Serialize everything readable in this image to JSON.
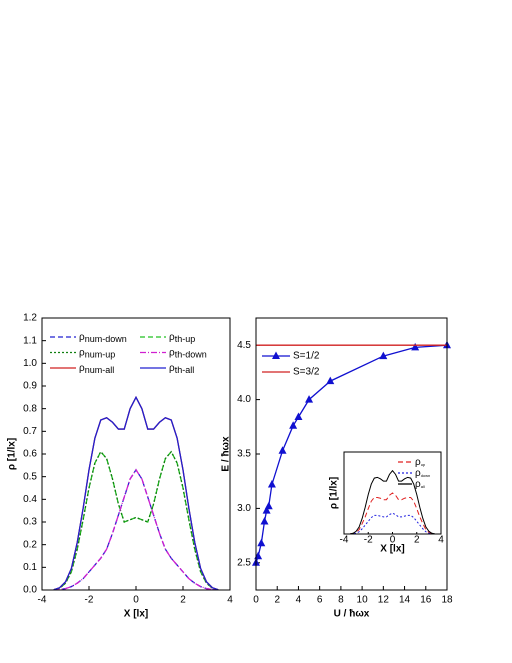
{
  "chart_data": [
    {
      "type": "line",
      "xlabel": "X [lx]",
      "ylabel": "ρ [1/lx]",
      "xlim": [
        -4,
        4
      ],
      "ylim": [
        0,
        1.2
      ],
      "xticks": [
        -4,
        -2,
        0,
        2,
        4
      ],
      "yticks": [
        {
          "value": 0,
          "label": "0.0"
        },
        0.1,
        0.2,
        0.3,
        0.4,
        0.5,
        0.6,
        0.7,
        0.8,
        0.9,
        {
          "value": 1,
          "label": "1.0"
        },
        1.1,
        1.2
      ],
      "legend": "top",
      "x": [
        -3.5,
        -3.25,
        -3,
        -2.75,
        -2.5,
        -2.25,
        -2,
        -1.75,
        -1.5,
        -1.25,
        -1,
        -0.75,
        -0.5,
        -0.25,
        0,
        0.25,
        0.5,
        0.75,
        1,
        1.25,
        1.5,
        1.75,
        2,
        2.25,
        2.5,
        2.75,
        3,
        3.25,
        3.5
      ],
      "series": [
        {
          "name": "ρnum-down",
          "color": "#2020d0",
          "style": "dashed",
          "values": [
            0,
            0.002,
            0.006,
            0.015,
            0.03,
            0.05,
            0.08,
            0.11,
            0.14,
            0.18,
            0.25,
            0.33,
            0.41,
            0.49,
            0.53,
            0.49,
            0.41,
            0.33,
            0.25,
            0.18,
            0.14,
            0.11,
            0.08,
            0.05,
            0.03,
            0.015,
            0.006,
            0.002,
            0
          ]
        },
        {
          "name": "ρth-up",
          "color": "#20c020",
          "style": "dashed",
          "values": [
            0.001,
            0.008,
            0.03,
            0.08,
            0.18,
            0.31,
            0.45,
            0.56,
            0.61,
            0.58,
            0.49,
            0.38,
            0.3,
            0.31,
            0.32,
            0.31,
            0.3,
            0.38,
            0.49,
            0.58,
            0.61,
            0.56,
            0.45,
            0.31,
            0.18,
            0.08,
            0.03,
            0.008,
            0.001
          ]
        },
        {
          "name": "ρnum-up",
          "color": "#108010",
          "style": "dotted",
          "values": [
            0.001,
            0.008,
            0.03,
            0.08,
            0.18,
            0.31,
            0.45,
            0.56,
            0.61,
            0.58,
            0.49,
            0.38,
            0.3,
            0.31,
            0.32,
            0.31,
            0.3,
            0.38,
            0.49,
            0.58,
            0.61,
            0.56,
            0.45,
            0.31,
            0.18,
            0.08,
            0.03,
            0.008,
            0.001
          ]
        },
        {
          "name": "ρth-down",
          "color": "#d020d0",
          "style": "dashdot",
          "values": [
            0,
            0.002,
            0.006,
            0.015,
            0.03,
            0.05,
            0.08,
            0.11,
            0.14,
            0.18,
            0.25,
            0.33,
            0.41,
            0.49,
            0.53,
            0.49,
            0.41,
            0.33,
            0.25,
            0.18,
            0.14,
            0.11,
            0.08,
            0.05,
            0.03,
            0.015,
            0.006,
            0.002,
            0
          ]
        },
        {
          "name": "ρnum-all",
          "color": "#d02020",
          "style": "solid",
          "values": [
            0.001,
            0.01,
            0.036,
            0.095,
            0.21,
            0.36,
            0.53,
            0.67,
            0.75,
            0.76,
            0.74,
            0.71,
            0.71,
            0.8,
            0.85,
            0.8,
            0.71,
            0.71,
            0.74,
            0.76,
            0.75,
            0.67,
            0.53,
            0.36,
            0.21,
            0.095,
            0.036,
            0.01,
            0.001
          ]
        },
        {
          "name": "ρth-all",
          "color": "#2020d0",
          "style": "solid",
          "values": [
            0.001,
            0.01,
            0.036,
            0.095,
            0.21,
            0.36,
            0.53,
            0.67,
            0.75,
            0.76,
            0.74,
            0.71,
            0.71,
            0.8,
            0.85,
            0.8,
            0.71,
            0.71,
            0.74,
            0.76,
            0.75,
            0.67,
            0.53,
            0.36,
            0.21,
            0.095,
            0.036,
            0.01,
            0.001
          ]
        }
      ]
    },
    {
      "type": "line",
      "xlabel": "U / ħωx",
      "ylabel": "E / ħωx",
      "xlim": [
        0,
        18
      ],
      "ylim": [
        2.25,
        4.75
      ],
      "xticks": [
        0,
        2,
        4,
        6,
        8,
        10,
        12,
        14,
        16,
        18
      ],
      "yticks": [
        2.5,
        {
          "value": 3,
          "label": "3.0"
        },
        3.5,
        {
          "value": 4,
          "label": "4.0"
        },
        4.5
      ],
      "legend": "upper left",
      "series": [
        {
          "name": "S=1/2",
          "color": "#1010d0",
          "style": "solid",
          "marker": "triangle",
          "x": [
            0,
            0.2,
            0.5,
            0.8,
            1,
            1.2,
            1.5,
            2.5,
            3.5,
            4,
            5,
            7,
            12,
            15,
            18
          ],
          "values": [
            2.5,
            2.56,
            2.68,
            2.88,
            2.98,
            3.02,
            3.22,
            3.53,
            3.76,
            3.84,
            4.0,
            4.17,
            4.4,
            4.48,
            4.5
          ]
        },
        {
          "name": "S=3/2",
          "color": "#d02020",
          "style": "solid",
          "x": [
            0,
            18
          ],
          "values": [
            4.5,
            4.5
          ]
        }
      ]
    },
    {
      "type": "line",
      "xlabel": "X [lx]",
      "ylabel": "ρ [1/lx]",
      "xlim": [
        -4,
        4
      ],
      "ylim": [
        0,
        1.1
      ],
      "xticks": [
        -4,
        -2,
        0,
        2,
        4
      ],
      "legend": "upper right",
      "x": [
        -3.5,
        -3.25,
        -3,
        -2.75,
        -2.5,
        -2.25,
        -2,
        -1.75,
        -1.5,
        -1.25,
        -1,
        -0.75,
        -0.5,
        -0.25,
        0,
        0.25,
        0.5,
        0.75,
        1,
        1.25,
        1.5,
        1.75,
        2,
        2.25,
        2.5,
        2.75,
        3,
        3.25,
        3.5
      ],
      "series": [
        {
          "name": "ρup",
          "color": "#e02020",
          "style": "dashed",
          "values": [
            0.001,
            0.007,
            0.02,
            0.06,
            0.14,
            0.23,
            0.34,
            0.44,
            0.49,
            0.49,
            0.48,
            0.46,
            0.46,
            0.52,
            0.55,
            0.52,
            0.46,
            0.46,
            0.48,
            0.49,
            0.49,
            0.44,
            0.34,
            0.23,
            0.14,
            0.06,
            0.02,
            0.007,
            0.001
          ]
        },
        {
          "name": "ρdown",
          "color": "#2020e0",
          "style": "dotted",
          "values": [
            0,
            0.003,
            0.01,
            0.03,
            0.07,
            0.12,
            0.17,
            0.22,
            0.25,
            0.25,
            0.24,
            0.23,
            0.23,
            0.26,
            0.28,
            0.26,
            0.23,
            0.23,
            0.24,
            0.25,
            0.25,
            0.22,
            0.17,
            0.12,
            0.07,
            0.03,
            0.01,
            0.003,
            0
          ]
        },
        {
          "name": "ρall",
          "color": "#000000",
          "style": "solid",
          "values": [
            0.001,
            0.01,
            0.036,
            0.095,
            0.21,
            0.36,
            0.53,
            0.67,
            0.75,
            0.76,
            0.74,
            0.71,
            0.71,
            0.8,
            0.85,
            0.8,
            0.71,
            0.71,
            0.74,
            0.76,
            0.75,
            0.67,
            0.53,
            0.36,
            0.21,
            0.095,
            0.036,
            0.01,
            0.001
          ]
        }
      ]
    }
  ]
}
